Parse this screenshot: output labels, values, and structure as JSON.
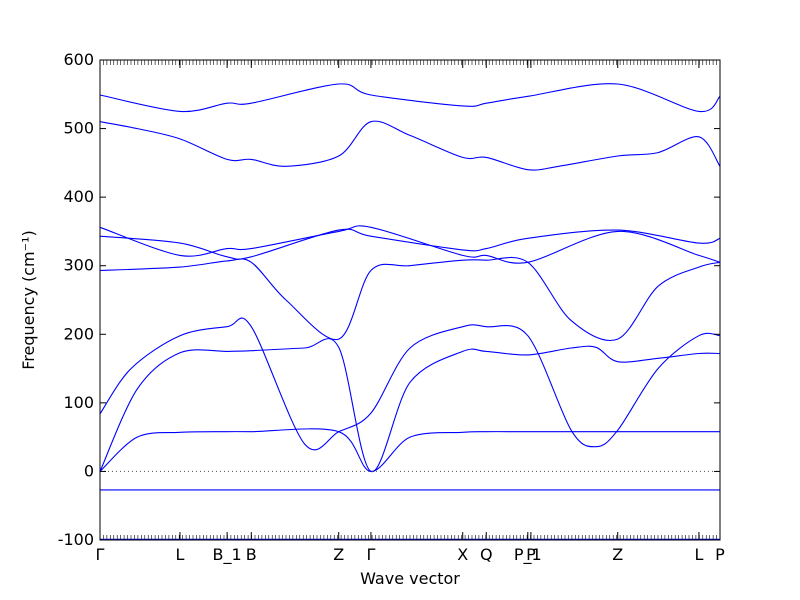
{
  "chart_data": {
    "type": "line",
    "xlabel": "Wave vector",
    "ylabel": "Frequency (cm⁻¹)",
    "ylim": [
      -100,
      600
    ],
    "yticks": [
      -100,
      0,
      100,
      200,
      300,
      400,
      500,
      600
    ],
    "xticks": [
      {
        "x": 0.0,
        "label": "Γ"
      },
      {
        "x": 0.129,
        "label": "L"
      },
      {
        "x": 0.205,
        "label": "B_1"
      },
      {
        "x": 0.244,
        "label": "B"
      },
      {
        "x": 0.385,
        "label": "Z"
      },
      {
        "x": 0.437,
        "label": "Γ"
      },
      {
        "x": 0.585,
        "label": "X"
      },
      {
        "x": 0.623,
        "label": "Q"
      },
      {
        "x": 0.69,
        "label": "P_1"
      },
      {
        "x": 0.695,
        "label": "P"
      },
      {
        "x": 0.835,
        "label": "Z"
      },
      {
        "x": 0.966,
        "label": "L"
      },
      {
        "x": 1.0,
        "label": "P"
      }
    ],
    "zero_line": true,
    "grid": false,
    "line_color": "#0000ff",
    "series": [
      {
        "x": [
          0,
          0.129,
          0.205,
          0.244,
          0.385,
          0.437,
          0.585,
          0.623,
          0.69,
          0.835,
          0.966,
          1.0
        ],
        "values": [
          -99,
          -99,
          -99,
          -99,
          -99,
          -99,
          -99,
          -99,
          -99,
          -99,
          -99,
          -99
        ]
      },
      {
        "x": [
          0,
          0.129,
          0.205,
          0.244,
          0.385,
          0.437,
          0.585,
          0.623,
          0.69,
          0.835,
          0.966,
          1.0
        ],
        "values": [
          -27,
          -27,
          -27,
          -27,
          -27,
          -27,
          -27,
          -27,
          -27,
          -27,
          -27,
          -27
        ]
      },
      {
        "x": [
          0,
          0.06,
          0.129,
          0.205,
          0.244,
          0.385,
          0.437,
          0.5,
          0.585,
          0.623,
          0.69,
          0.835,
          0.966,
          1.0
        ],
        "values": [
          0,
          50,
          57,
          58,
          58,
          58,
          0,
          50,
          57,
          58,
          58,
          58,
          58,
          58
        ]
      },
      {
        "x": [
          0,
          0.06,
          0.129,
          0.205,
          0.244,
          0.33,
          0.385,
          0.437,
          0.5,
          0.585,
          0.623,
          0.69,
          0.76,
          0.8,
          0.835,
          0.9,
          0.966,
          1.0
        ],
        "values": [
          0,
          120,
          173,
          175,
          176,
          180,
          181,
          0,
          130,
          175,
          175,
          170,
          180,
          181,
          160,
          165,
          172,
          172
        ]
      },
      {
        "x": [
          0,
          0.05,
          0.129,
          0.205,
          0.244,
          0.33,
          0.385,
          0.437,
          0.5,
          0.585,
          0.623,
          0.69,
          0.76,
          0.8,
          0.835,
          0.9,
          0.966,
          1.0
        ],
        "values": [
          84,
          150,
          198,
          211,
          211,
          40,
          58,
          85,
          180,
          211,
          211,
          198,
          60,
          36,
          60,
          150,
          198,
          198
        ]
      },
      {
        "x": [
          0,
          0.129,
          0.205,
          0.244,
          0.3,
          0.385,
          0.437,
          0.5,
          0.585,
          0.623,
          0.69,
          0.76,
          0.835,
          0.9,
          0.966,
          1.0
        ],
        "values": [
          293,
          298,
          307,
          305,
          250,
          193,
          293,
          300,
          308,
          308,
          305,
          220,
          193,
          270,
          298,
          305
        ]
      },
      {
        "x": [
          0,
          0.129,
          0.205,
          0.244,
          0.385,
          0.437,
          0.585,
          0.623,
          0.69,
          0.835,
          0.966,
          1.0
        ],
        "values": [
          343,
          333,
          313,
          313,
          352,
          343,
          323,
          325,
          340,
          352,
          333,
          340
        ]
      },
      {
        "x": [
          0,
          0.129,
          0.205,
          0.244,
          0.385,
          0.437,
          0.585,
          0.623,
          0.69,
          0.835,
          0.966,
          1.0
        ],
        "values": [
          356,
          315,
          325,
          325,
          350,
          356,
          315,
          315,
          305,
          350,
          315,
          305
        ]
      },
      {
        "x": [
          0,
          0.06,
          0.129,
          0.205,
          0.244,
          0.3,
          0.385,
          0.437,
          0.5,
          0.585,
          0.623,
          0.69,
          0.74,
          0.835,
          0.9,
          0.966,
          1.0
        ],
        "values": [
          510,
          500,
          485,
          455,
          455,
          445,
          460,
          510,
          490,
          458,
          458,
          440,
          445,
          460,
          465,
          488,
          445
        ]
      },
      {
        "x": [
          0,
          0.129,
          0.205,
          0.244,
          0.385,
          0.437,
          0.585,
          0.623,
          0.69,
          0.835,
          0.966,
          1.0
        ],
        "values": [
          549,
          525,
          537,
          537,
          565,
          549,
          533,
          537,
          547,
          565,
          525,
          547
        ]
      }
    ]
  }
}
